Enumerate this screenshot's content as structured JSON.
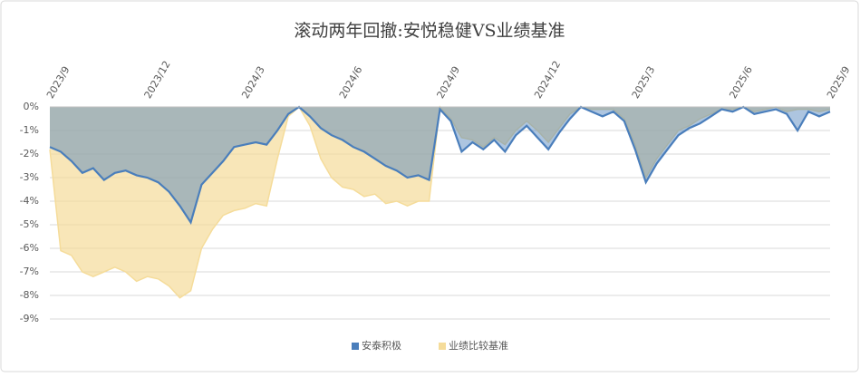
{
  "chart_data": {
    "type": "area",
    "title": "滚动两年回撤:安悦稳健VS业绩基准",
    "categories": [
      "2023/9",
      null,
      null,
      null,
      null,
      null,
      null,
      null,
      null,
      "2023/12",
      null,
      null,
      null,
      null,
      null,
      null,
      null,
      null,
      "2024/3",
      null,
      null,
      null,
      null,
      null,
      null,
      null,
      null,
      "2024/6",
      null,
      null,
      null,
      null,
      null,
      null,
      null,
      null,
      "2024/9",
      null,
      null,
      null,
      null,
      null,
      null,
      null,
      null,
      "2024/12",
      null,
      null,
      null,
      null,
      null,
      null,
      null,
      null,
      "2025/3",
      null,
      null,
      null,
      null,
      null,
      null,
      null,
      null,
      "2025/6",
      null,
      null,
      null,
      null,
      null,
      null,
      null,
      null,
      "2025/9"
    ],
    "series": [
      {
        "name": "业绩比较基准",
        "color": "#f5dc9a",
        "values": [
          -1.8,
          -6.1,
          -6.3,
          -7.0,
          -7.2,
          -7.0,
          -6.8,
          -7.0,
          -7.4,
          -7.2,
          -7.3,
          -7.6,
          -8.1,
          -7.8,
          -6.0,
          -5.2,
          -4.6,
          -4.4,
          -4.3,
          -4.1,
          -4.2,
          -2.2,
          -0.4,
          0,
          -0.8,
          -2.2,
          -3.0,
          -3.4,
          -3.5,
          -3.8,
          -3.7,
          -4.1,
          -4.0,
          -4.2,
          -4.0,
          -4.0,
          0,
          -0.5,
          -1.3,
          -1.4,
          -1.7,
          -1.3,
          -1.6,
          -1.0,
          -0.6,
          -1.0,
          -1.5,
          -0.9,
          -0.3,
          0,
          -0.1,
          -0.1,
          -0.1,
          -0.5,
          -1.6,
          -3.0,
          -2.2,
          -1.6,
          -1.0,
          -0.8,
          -0.5,
          -0.3,
          -0.1,
          -0.1,
          0,
          -0.2,
          -0.1,
          0,
          -0.2,
          -0.1,
          -0.1,
          -0.2,
          -0.1
        ]
      },
      {
        "name": "安泰积极",
        "color": "#4a7ebb",
        "values": [
          -1.7,
          -1.9,
          -2.3,
          -2.8,
          -2.6,
          -3.1,
          -2.8,
          -2.7,
          -2.9,
          -3.0,
          -3.2,
          -3.6,
          -4.2,
          -4.9,
          -3.3,
          -2.8,
          -2.3,
          -1.7,
          -1.6,
          -1.5,
          -1.6,
          -1.0,
          -0.3,
          0,
          -0.4,
          -0.9,
          -1.2,
          -1.4,
          -1.7,
          -1.9,
          -2.2,
          -2.5,
          -2.7,
          -3.0,
          -2.9,
          -3.1,
          -0.1,
          -0.6,
          -1.9,
          -1.5,
          -1.8,
          -1.4,
          -1.9,
          -1.2,
          -0.8,
          -1.3,
          -1.8,
          -1.1,
          -0.5,
          0,
          -0.2,
          -0.4,
          -0.2,
          -0.6,
          -1.8,
          -3.2,
          -2.4,
          -1.8,
          -1.2,
          -0.9,
          -0.7,
          -0.4,
          -0.1,
          -0.2,
          0,
          -0.3,
          -0.2,
          -0.1,
          -0.3,
          -1.0,
          -0.2,
          -0.4,
          -0.2
        ]
      }
    ],
    "legend_order": [
      "安泰积极",
      "业绩比较基准"
    ],
    "ylim": [
      -9,
      0
    ],
    "yticks": [
      {
        "value": 0,
        "label": "0%"
      },
      {
        "value": -1,
        "label": "-1%"
      },
      {
        "value": -2,
        "label": "-2%"
      },
      {
        "value": -3,
        "label": "-3%"
      },
      {
        "value": -4,
        "label": "-4%"
      },
      {
        "value": -5,
        "label": "-5%"
      },
      {
        "value": -6,
        "label": "-6%"
      },
      {
        "value": -7,
        "label": "-7%"
      },
      {
        "value": -8,
        "label": "-8%"
      },
      {
        "value": -9,
        "label": "-9%"
      }
    ],
    "grid": true,
    "legend": "bottom"
  }
}
